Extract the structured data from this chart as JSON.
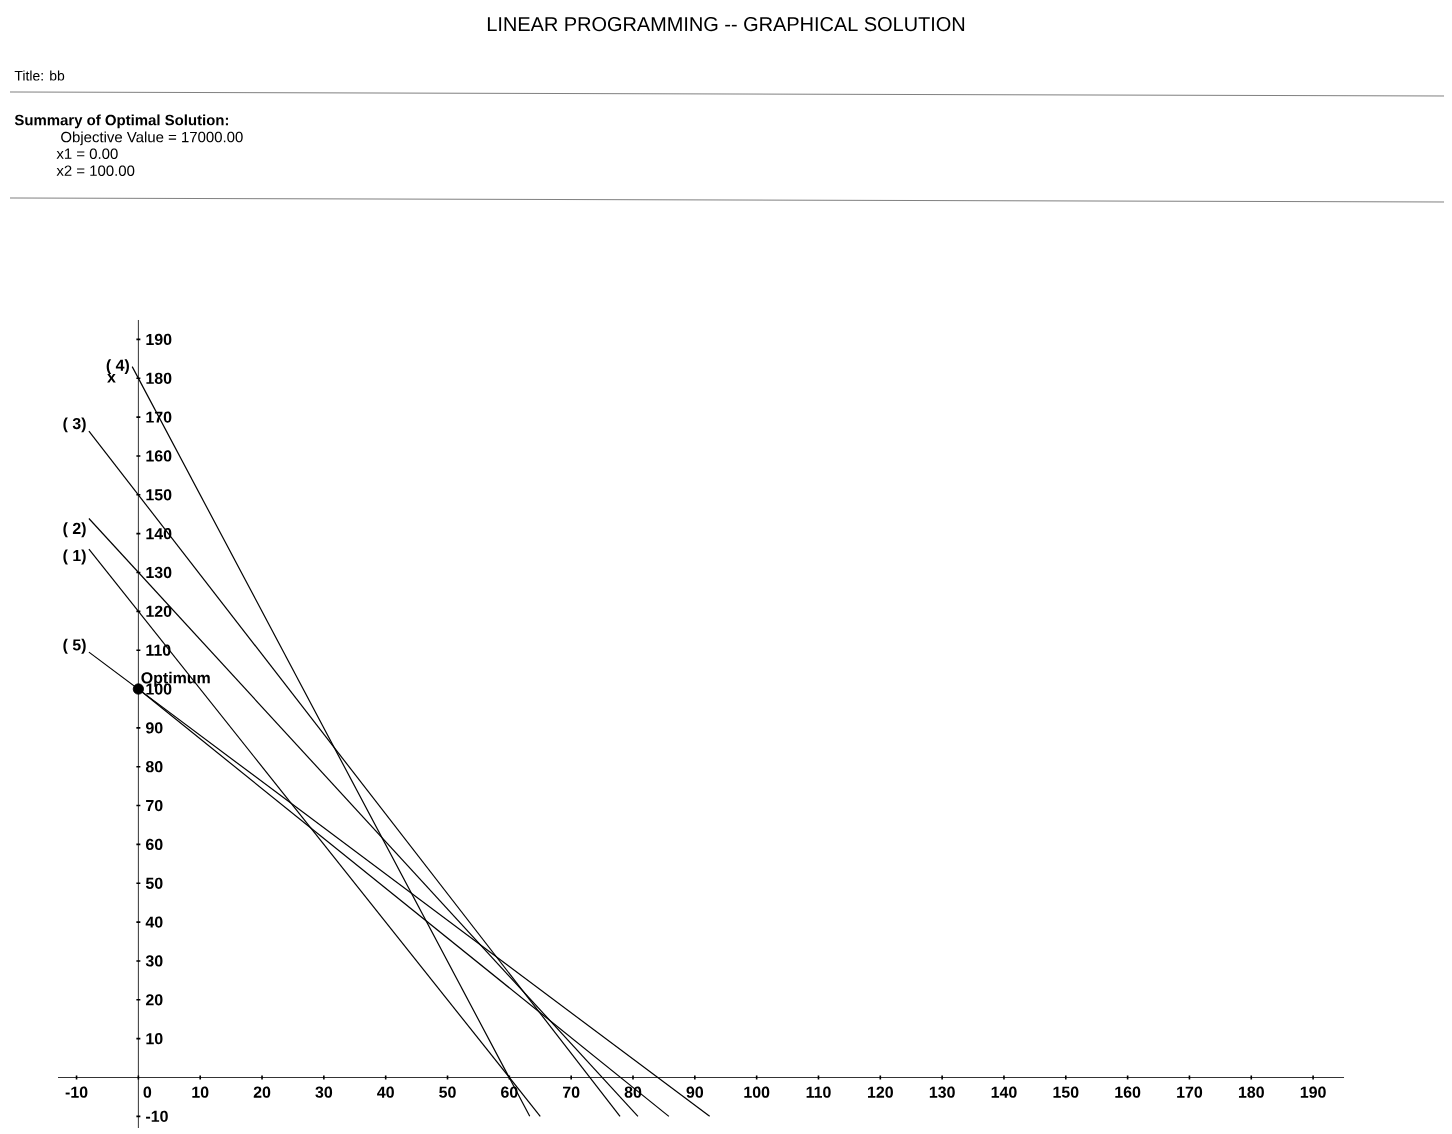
{
  "chart_data": {
    "type": "line",
    "title": "LINEAR PROGRAMMING -- GRAPHICAL SOLUTION",
    "subtitle": "Title: bb",
    "ylabel": "x",
    "xlim": [
      -13,
      195
    ],
    "ylim": [
      -13,
      195
    ],
    "xticks": [
      -10,
      0,
      10,
      20,
      30,
      40,
      50,
      60,
      70,
      80,
      90,
      100,
      110,
      120,
      130,
      140,
      150,
      160,
      170,
      180,
      190
    ],
    "yticks": [
      -10,
      10,
      20,
      30,
      40,
      50,
      60,
      70,
      80,
      90,
      100,
      110,
      120,
      130,
      140,
      150,
      160,
      170,
      180,
      190
    ],
    "series": [
      {
        "color": "#000000",
        "x": [
          -1,
          63.3
        ],
        "values": [
          183,
          -10
        ]
      },
      {
        "color": "#000000",
        "x": [
          -8,
          65
        ],
        "values": [
          136,
          -10
        ]
      },
      {
        "color": "#000000",
        "x": [
          -8,
          80.8
        ],
        "values": [
          143.9,
          -10
        ]
      },
      {
        "color": "#000000",
        "x": [
          -8,
          77.9
        ],
        "values": [
          166.4,
          -10
        ]
      },
      {
        "color": "#000000",
        "x": [
          -8,
          92.4
        ],
        "values": [
          109.5,
          -10
        ]
      },
      {
        "color": "#000000",
        "x": [
          0,
          85.8
        ],
        "values": [
          100,
          -10
        ]
      },
      {
        "type": "scatter",
        "marker": "circle",
        "color": "#000000",
        "x": [
          0
        ],
        "values": [
          100
        ]
      }
    ],
    "annotations": [
      "Summary of Optimal Solution:",
      "Objective Value = 17000.00",
      "x1 =  0.00",
      "x2 =  100.00",
      {
        "text": "( 4)",
        "x": -1,
        "y": 183
      },
      {
        "text": "( 3)",
        "x": -8,
        "y": 168
      },
      {
        "text": "( 2)",
        "x": -8,
        "y": 141
      },
      {
        "text": "( 1)",
        "x": -8,
        "y": 134
      },
      {
        "text": "( 5)",
        "x": -8,
        "y": 111
      },
      {
        "text": "Optimum",
        "x": 0,
        "y": 100
      }
    ]
  }
}
